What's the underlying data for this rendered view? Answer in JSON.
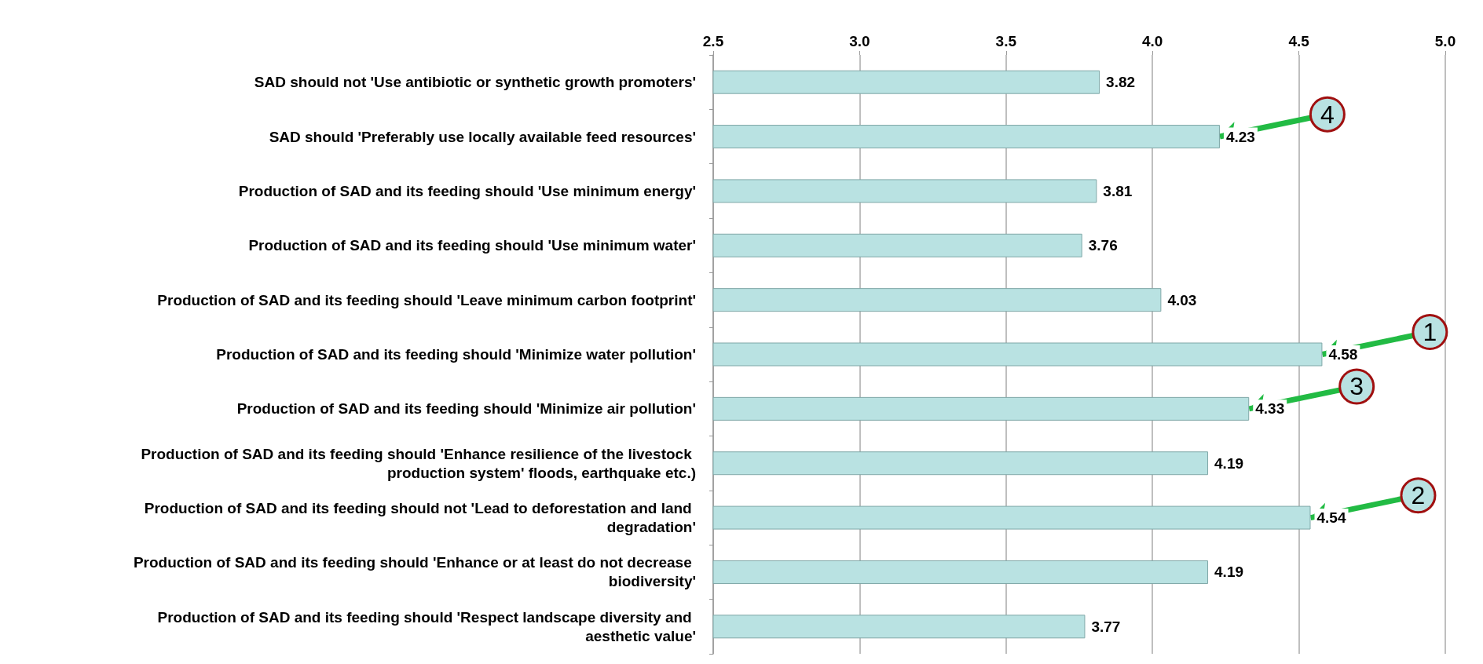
{
  "chart_data": {
    "type": "bar",
    "orientation": "horizontal",
    "categories": [
      "SAD should not 'Use antibiotic or synthetic growth promoters'",
      "SAD should 'Preferably use locally available feed resources'",
      "Production of SAD and its feeding should 'Use minimum energy'",
      "Production of SAD and its feeding should 'Use minimum water'",
      "Production of SAD and its feeding should 'Leave minimum carbon footprint'",
      "Production of SAD and its feeding should 'Minimize water pollution'",
      "Production of SAD and its feeding should 'Minimize air pollution'",
      "Production of SAD and its feeding should 'Enhance resilience of the livestock production system' floods, earthquake etc.)",
      "Production of SAD and its feeding should not 'Lead to deforestation and land degradation'",
      "Production of SAD and its feeding should 'Enhance or at least do not decrease biodiversity'",
      "Production of SAD and its feeding should 'Respect landscape diversity and aesthetic value'"
    ],
    "values": [
      3.82,
      4.23,
      3.81,
      3.76,
      4.03,
      4.58,
      4.33,
      4.19,
      4.54,
      4.19,
      3.77
    ],
    "color": "#b9e2e2",
    "data_labels": true,
    "xlim": [
      2.5,
      5.0
    ],
    "xticks": [
      {
        "value": 2.5,
        "label": "2.5"
      },
      {
        "value": 3,
        "label": "3.0"
      },
      {
        "value": 3.5,
        "label": "3.5"
      },
      {
        "value": 4,
        "label": "4.0"
      },
      {
        "value": 4.5,
        "label": "4.5"
      },
      {
        "value": 5,
        "label": "5.0"
      }
    ],
    "grid": "x",
    "annotations": [
      {
        "text": "1",
        "x": 4.58,
        "y": "Production of SAD and its feeding should 'Minimize water pollution'"
      },
      {
        "text": "2",
        "x": 4.54,
        "y": "Production of SAD and its feeding should not 'Lead to deforestation and land degradation'"
      },
      {
        "text": "3",
        "x": 4.33,
        "y": "Production of SAD and its feeding should 'Minimize air pollution'"
      },
      {
        "text": "4",
        "x": 4.23,
        "y": "SAD should 'Preferably use locally available feed resources'"
      }
    ]
  }
}
